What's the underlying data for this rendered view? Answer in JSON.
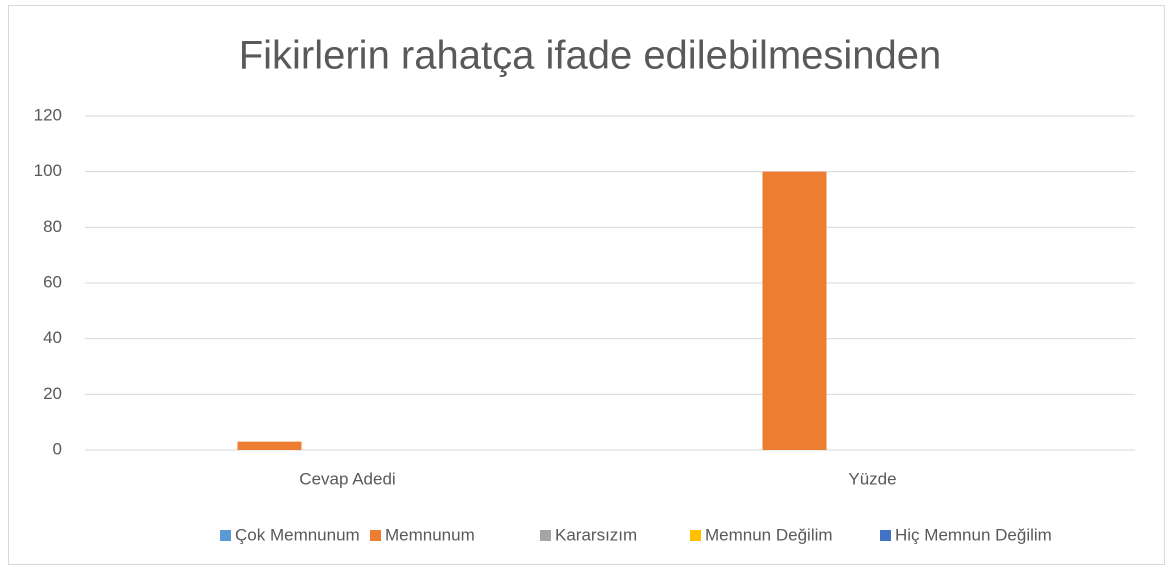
{
  "chart_data": {
    "type": "bar",
    "title": "Fikirlerin rahatça ifade edilebilmesinden",
    "categories": [
      "Cevap Adedi",
      "Yüzde"
    ],
    "series": [
      {
        "name": "Çok Memnunum",
        "color": "#5b9bd5",
        "values": [
          0,
          0
        ]
      },
      {
        "name": "Memnunum",
        "color": "#ed7d31",
        "values": [
          3,
          100
        ]
      },
      {
        "name": "Kararsızım",
        "color": "#a5a5a5",
        "values": [
          0,
          0
        ]
      },
      {
        "name": "Memnun Değilim",
        "color": "#ffc000",
        "values": [
          0,
          0
        ]
      },
      {
        "name": "Hiç Memnun Değilim",
        "color": "#4472c4",
        "values": [
          0,
          0
        ]
      }
    ],
    "ylim": [
      0,
      120
    ],
    "yticks": [
      0,
      20,
      40,
      60,
      80,
      100,
      120
    ],
    "grid": true,
    "legend": "bottom"
  }
}
